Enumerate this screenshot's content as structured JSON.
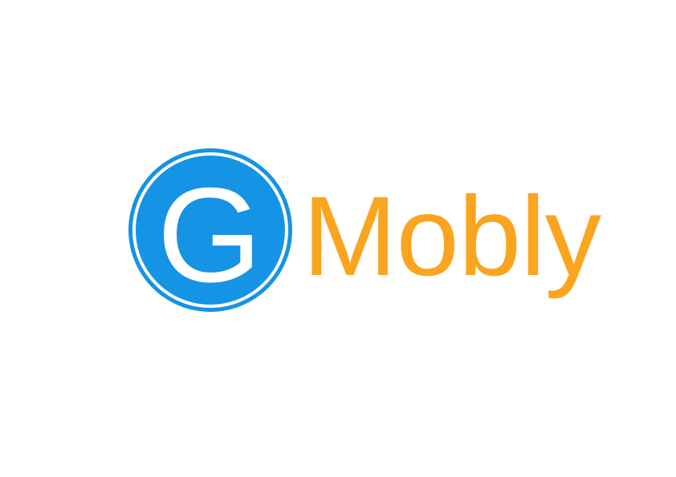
{
  "logo": {
    "letter": "G",
    "wordmark": "Mobly",
    "colors": {
      "circle": "#1593e5",
      "ring_gap": "#ffffff",
      "letter": "#ffffff",
      "wordmark": "#faa51f"
    },
    "icon": "g-circle-icon"
  }
}
